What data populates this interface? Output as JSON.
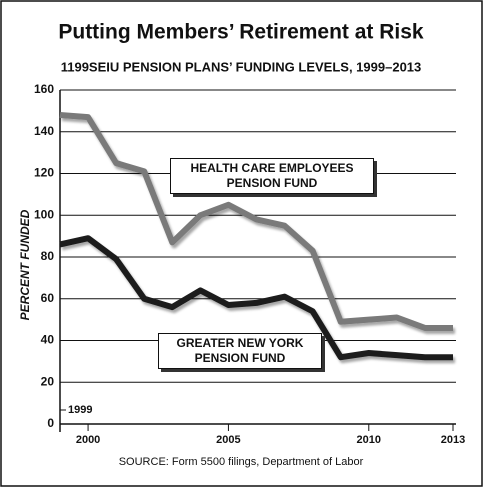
{
  "chart_data": {
    "type": "line",
    "title": "Putting Members’ Retirement at Risk",
    "subtitle": "1199SEIU PENSION PLANS’ FUNDING LEVELS, 1999–2013",
    "y_label": "PERCENT FUNDED",
    "source": "SOURCE: Form 5500 filings, Department of Labor",
    "x": [
      1999,
      2000,
      2001,
      2002,
      2003,
      2004,
      2005,
      2006,
      2007,
      2008,
      2009,
      2010,
      2011,
      2012,
      2013
    ],
    "series": [
      {
        "name": "HEALTH CARE EMPLOYEES PENSION FUND",
        "color": "#7a7a7a",
        "values": [
          148,
          147,
          125,
          121,
          87,
          100,
          105,
          98,
          95,
          83,
          49,
          50,
          51,
          46,
          46
        ]
      },
      {
        "name": "GREATER NEW YORK PENSION FUND",
        "color": "#1a1a1a",
        "values": [
          86,
          89,
          79,
          60,
          56,
          64,
          57,
          58,
          61,
          54,
          32,
          34,
          33,
          32,
          32
        ]
      }
    ],
    "xlim": [
      1999,
      2013
    ],
    "xticks": [
      1999,
      2000,
      2005,
      2010,
      2013
    ],
    "ylim": [
      0,
      160
    ],
    "yticks": [
      0,
      20,
      40,
      60,
      80,
      100,
      120,
      140,
      160
    ],
    "grid": true
  }
}
